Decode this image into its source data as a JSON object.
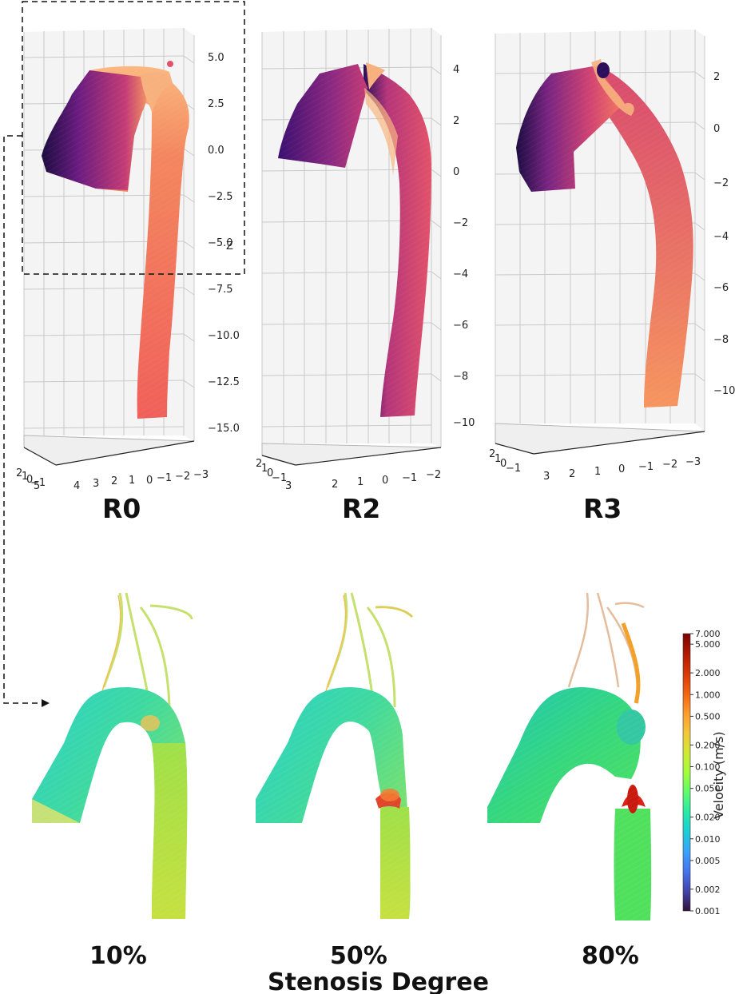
{
  "top_row": {
    "panels": [
      {
        "label": "R0",
        "z_ticks": [
          "5.0",
          "2.5",
          "0.0",
          "−2.5",
          "−5.0",
          "−7.5",
          "−10.0",
          "−12.5",
          "−15.0"
        ],
        "z_axis_label": "Z",
        "x_ticks": [
          "5",
          "4",
          "3",
          "2",
          "1",
          "0",
          "−1",
          "−2",
          "−3"
        ],
        "y_ticks": [
          "2",
          "1",
          "0",
          "−1"
        ]
      },
      {
        "label": "R2",
        "z_ticks": [
          "4",
          "2",
          "0",
          "−2",
          "−4",
          "−6",
          "−8",
          "−10"
        ],
        "x_ticks": [
          "3",
          "2",
          "1",
          "0",
          "−1",
          "−2"
        ],
        "y_ticks": [
          "2",
          "1",
          "0",
          "−1"
        ]
      },
      {
        "label": "R3",
        "z_ticks": [
          "2",
          "0",
          "−2",
          "−4",
          "−6",
          "−8",
          "−10"
        ],
        "x_ticks": [
          "3",
          "2",
          "1",
          "0",
          "−1",
          "−2",
          "−3"
        ],
        "y_ticks": [
          "2",
          "1",
          "0",
          "−1"
        ]
      }
    ]
  },
  "bottom_row": {
    "panels": [
      {
        "label": "10%"
      },
      {
        "label": "50%"
      },
      {
        "label": "80%"
      }
    ],
    "caption": "Stenosis Degree"
  },
  "colorbar": {
    "title": "Velocity (m/s)",
    "ticks": [
      "7.000",
      "5.000",
      "2.000",
      "1.000",
      "0.500",
      "0.200",
      "0.100",
      "0.050",
      "0.020",
      "0.010",
      "0.005",
      "0.002",
      "0.001"
    ],
    "colors": [
      "#30123b",
      "#4145ab",
      "#4675ed",
      "#39a2fc",
      "#1bcfd4",
      "#24eca6",
      "#61fc6c",
      "#a4fc3b",
      "#d1e834",
      "#f3c63a",
      "#fe9b2d",
      "#f36315",
      "#d93806",
      "#b11901",
      "#7a0402"
    ]
  },
  "colors": {
    "magma_dark": "#1b0c41",
    "magma_purple": "#721f81",
    "magma_pink": "#cd4071",
    "magma_orange": "#f1605d",
    "magma_light": "#fec287"
  }
}
